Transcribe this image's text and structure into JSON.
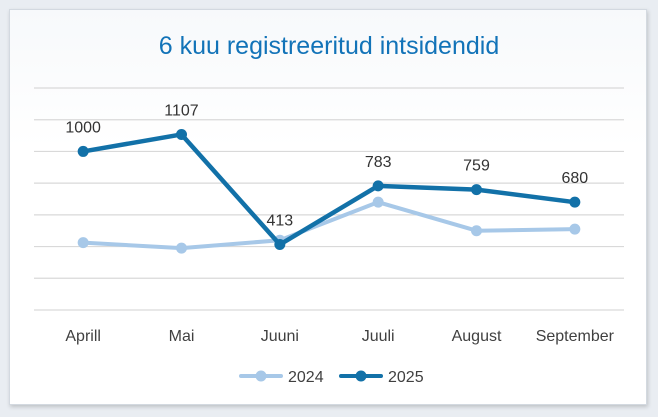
{
  "chart_data": {
    "type": "line",
    "title": "6 kuu registreeritud intsidendid",
    "categories": [
      "Aprill",
      "Mai",
      "Juuni",
      "Juuli",
      "August",
      "September"
    ],
    "ylim": [
      0,
      1400
    ],
    "grid": true,
    "legend_position": "bottom",
    "series": [
      {
        "name": "2024",
        "values": [
          425,
          390,
          440,
          680,
          500,
          510
        ],
        "color": "#a7c8e8",
        "data_labels": false
      },
      {
        "name": "2025",
        "values": [
          1000,
          1107,
          413,
          783,
          759,
          680
        ],
        "color": "#1271a8",
        "data_labels": true
      }
    ]
  }
}
